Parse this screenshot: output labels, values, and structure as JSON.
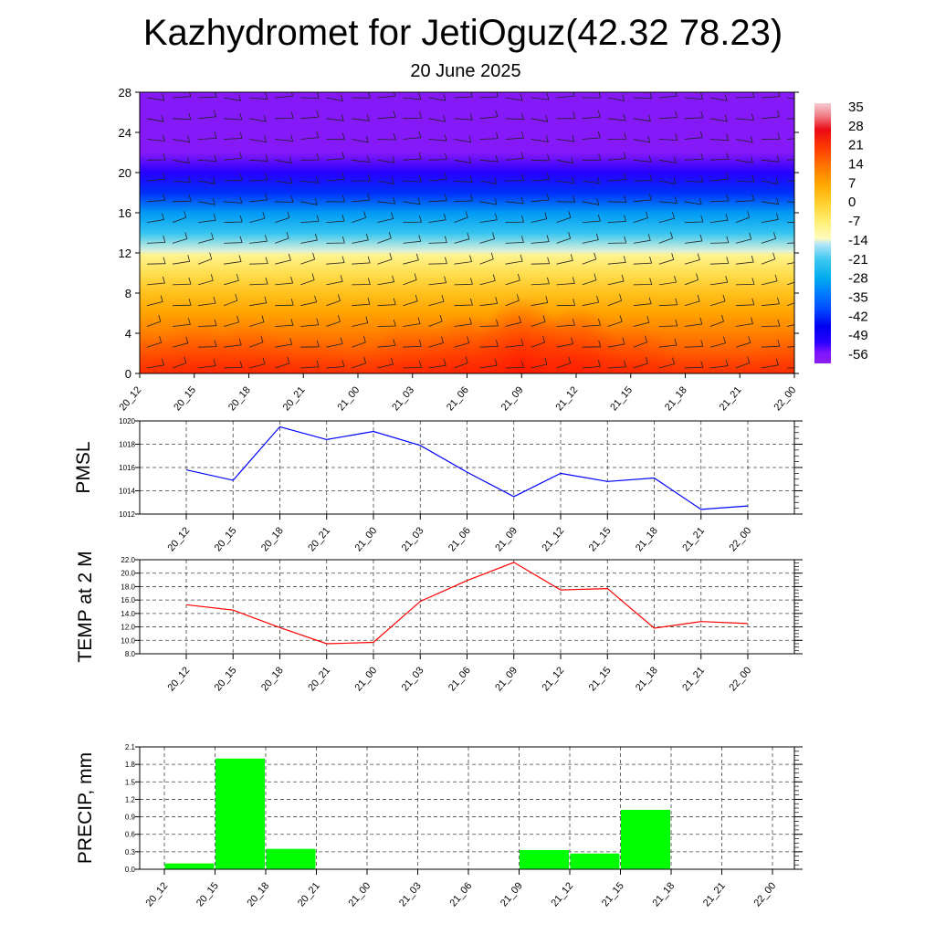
{
  "title": "Kazhydromet for JetiOguz(42.32 78.23)",
  "subtitle": "20 June 2025",
  "chart_data": [
    {
      "type": "heatmap",
      "description_label": "",
      "x_ticks": [
        "20_12",
        "20_15",
        "20_18",
        "20_21",
        "21_00",
        "21_03",
        "21_06",
        "21_09",
        "21_12",
        "21_15",
        "21_18",
        "21_21",
        "22_00"
      ],
      "y_ticks": [
        "0",
        "4",
        "8",
        "12",
        "16",
        "20",
        "24",
        "28"
      ],
      "ylim": [
        0,
        28
      ],
      "colorbar_ticks": [
        "35",
        "28",
        "21",
        "14",
        "7",
        "0",
        "-7",
        "-14",
        "-21",
        "-28",
        "-35",
        "-42",
        "-49",
        "-56"
      ],
      "colorbar_range": [
        -60,
        38
      ],
      "surface_temperature": [
        21,
        22,
        22,
        21,
        20,
        22,
        23,
        25,
        24,
        22,
        20,
        20,
        21
      ],
      "temperature_profile": [
        {
          "height": 0,
          "value": 22
        },
        {
          "height": 2,
          "value": 17
        },
        {
          "height": 4,
          "value": 13
        },
        {
          "height": 6,
          "value": 8
        },
        {
          "height": 8,
          "value": 3
        },
        {
          "height": 10,
          "value": -3
        },
        {
          "height": 11.8,
          "value": -9
        },
        {
          "height": 12.2,
          "value": -14
        },
        {
          "height": 14,
          "value": -22
        },
        {
          "height": 16,
          "value": -30
        },
        {
          "height": 18,
          "value": -42
        },
        {
          "height": 20,
          "value": -52
        },
        {
          "height": 22,
          "value": -58
        },
        {
          "height": 28,
          "value": -58
        }
      ],
      "wind_barbs": true
    },
    {
      "type": "line",
      "ylabel": "PMSL",
      "categories": [
        "20_12",
        "20_15",
        "20_18",
        "20_21",
        "21_00",
        "21_03",
        "21_06",
        "21_09",
        "21_12",
        "21_15",
        "21_18",
        "21_21",
        "22_00"
      ],
      "values": [
        1015.8,
        1014.9,
        1019.5,
        1018.4,
        1019.1,
        1017.9,
        1015.6,
        1013.5,
        1015.5,
        1014.8,
        1015.1,
        1012.4,
        1012.7
      ],
      "ylim": [
        1012,
        1020
      ],
      "y_ticks": [
        "1012",
        "1014",
        "1016",
        "1018",
        "1020"
      ],
      "color": "#0000ff",
      "grid": true
    },
    {
      "type": "line",
      "ylabel": "TEMP at 2 M",
      "categories": [
        "20_12",
        "20_15",
        "20_18",
        "20_21",
        "21_00",
        "21_03",
        "21_06",
        "21_09",
        "21_12",
        "21_15",
        "21_18",
        "21_21",
        "22_00"
      ],
      "values": [
        15.3,
        14.5,
        11.9,
        9.5,
        9.7,
        15.8,
        18.9,
        21.6,
        17.5,
        17.7,
        11.8,
        12.8,
        12.5
      ],
      "ylim": [
        8,
        22
      ],
      "y_ticks": [
        "8.0",
        "10.0",
        "12.0",
        "14.0",
        "16.0",
        "18.0",
        "20.0",
        "22.0"
      ],
      "color": "#ff0000",
      "grid": true
    },
    {
      "type": "bar",
      "ylabel": "PRECIP, mm",
      "categories": [
        "20_12",
        "20_15",
        "20_18",
        "20_21",
        "21_00",
        "21_03",
        "21_06",
        "21_09",
        "21_12",
        "21_15",
        "21_18",
        "21_21",
        "22_00"
      ],
      "values": [
        0,
        0.1,
        1.9,
        0.35,
        0,
        0,
        0,
        0,
        0.33,
        0.27,
        1.02,
        0,
        0
      ],
      "ylim": [
        0,
        2.1
      ],
      "y_ticks": [
        "0.0",
        "0.3",
        "0.6",
        "0.9",
        "1.2",
        "1.5",
        "1.8",
        "2.1"
      ],
      "color": "#00ff00",
      "grid": true
    }
  ]
}
